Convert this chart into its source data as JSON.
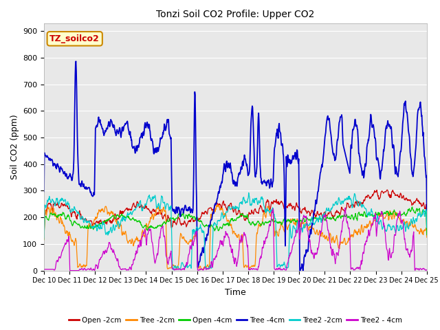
{
  "title": "Tonzi Soil CO2 Profile: Upper CO2",
  "xlabel": "Time",
  "ylabel": "Soil CO2 (ppm)",
  "ylim": [
    0,
    930
  ],
  "yticks": [
    0,
    100,
    200,
    300,
    400,
    500,
    600,
    700,
    800,
    900
  ],
  "background_color": "#ffffff",
  "plot_bg_color": "#e8e8e8",
  "watermark_text": "TZ_soilco2",
  "watermark_bg": "#ffffcc",
  "watermark_border": "#cc8800",
  "watermark_text_color": "#cc0000",
  "series_colors": {
    "Open -2cm": "#cc0000",
    "Tree -2cm": "#ff8800",
    "Open -4cm": "#00cc00",
    "Tree -4cm": "#0000cc",
    "Tree2 -2cm": "#00cccc",
    "Tree2 - 4cm": "#cc00cc"
  },
  "legend_entries": [
    "Open -2cm",
    "Tree -2cm",
    "Open -4cm",
    "Tree -4cm",
    "Tree2 -2cm",
    "Tree2 - 4cm"
  ],
  "xtick_labels": [
    "Dec 10",
    "Dec 11",
    "Dec 12",
    "Dec 13",
    "Dec 14",
    "Dec 15",
    "Dec 16",
    "Dec 17",
    "Dec 18",
    "Dec 19",
    "Dec 20",
    "Dec 21",
    "Dec 22",
    "Dec 23",
    "Dec 24",
    "Dec 25"
  ]
}
